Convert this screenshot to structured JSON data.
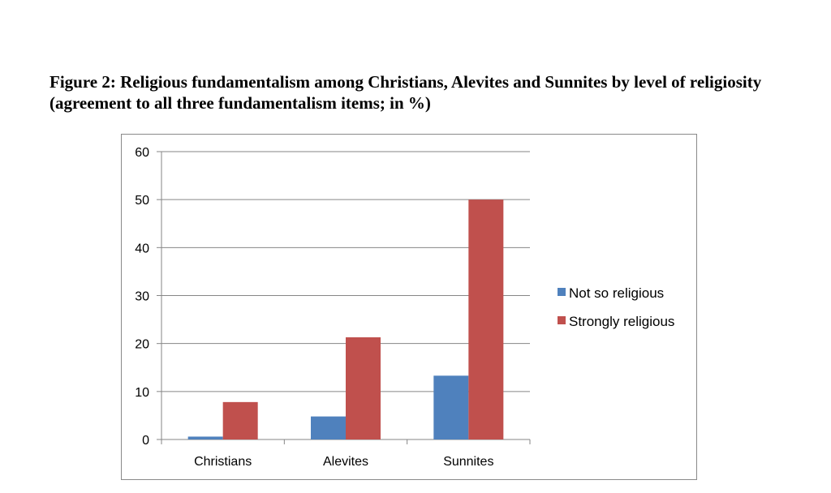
{
  "figure": {
    "title": "Figure 2: Religious fundamentalism among Christians, Alevites and Sunnites by level of religiosity (agreement to all three fundamentalism items; in %)"
  },
  "chart_data": {
    "type": "bar",
    "categories": [
      "Christians",
      "Alevites",
      "Sunnites"
    ],
    "series": [
      {
        "name": "Not so religious",
        "values": [
          0.6,
          4.8,
          13.3
        ],
        "color": "#4f81bd"
      },
      {
        "name": "Strongly religious",
        "values": [
          7.8,
          21.3,
          50.0
        ],
        "color": "#c0504d"
      }
    ],
    "ylim": [
      0,
      60
    ],
    "yticks": [
      "0",
      "10",
      "20",
      "30",
      "40",
      "50",
      "60"
    ],
    "grid": true,
    "legend": "right",
    "xlabel": "",
    "ylabel": ""
  }
}
